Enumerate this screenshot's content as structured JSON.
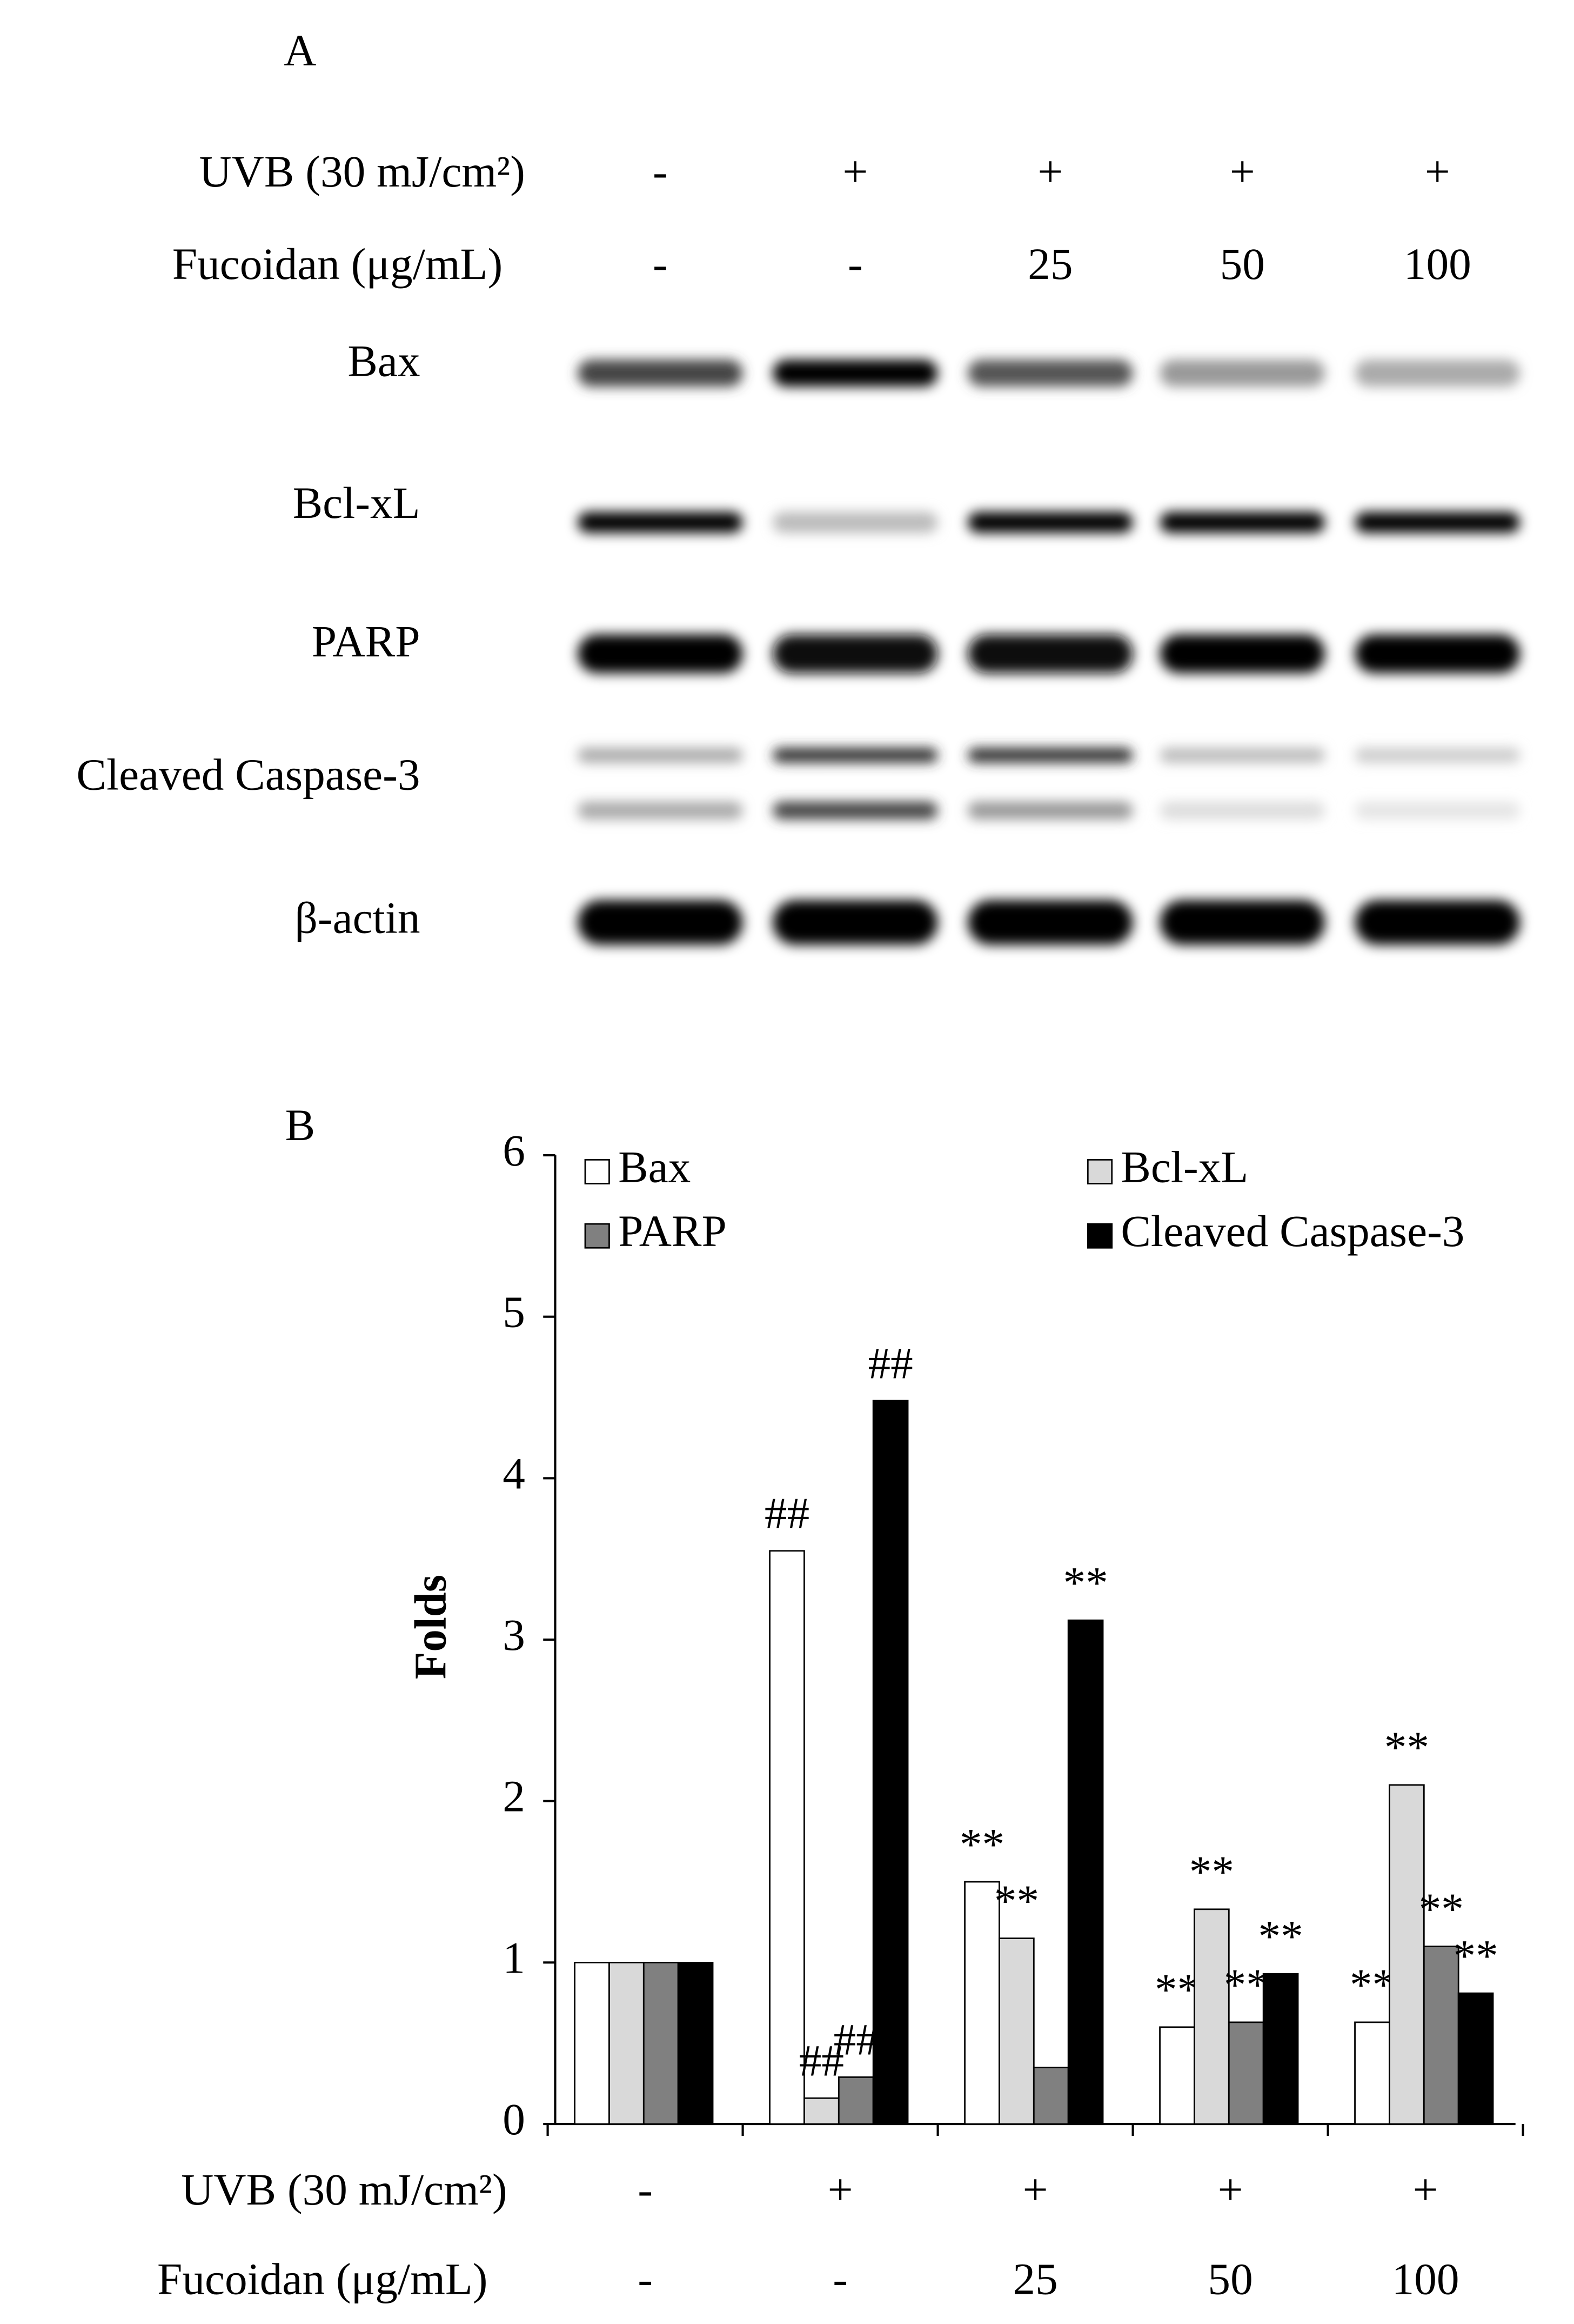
{
  "panel_a": {
    "label": "A",
    "rows": [
      {
        "name": "UVB (30 mJ/cm²)",
        "values": [
          "-",
          "+",
          "+",
          "+",
          "+"
        ]
      },
      {
        "name": "Fucoidan (μg/mL)",
        "values": [
          "-",
          "-",
          "25",
          "50",
          "100"
        ]
      }
    ],
    "bands": [
      "Bax",
      "Bcl-xL",
      "PARP",
      "Cleaved Caspase-3",
      "β-actin"
    ]
  },
  "chart_data": {
    "type": "bar",
    "panel_label": "B",
    "ylabel": "Folds",
    "ylim": [
      0,
      6
    ],
    "yticks": [
      0,
      1,
      2,
      3,
      4,
      5,
      6
    ],
    "legend": "top",
    "x_label_rows": [
      {
        "name": "UVB (30 mJ/cm²)",
        "labels": [
          "-",
          "+",
          "+",
          "+",
          "+"
        ]
      },
      {
        "name": "Fucoidan (μg/mL)",
        "labels": [
          "-",
          "-",
          "25",
          "50",
          "100"
        ]
      }
    ],
    "series": [
      {
        "name": "Bax",
        "color": "#ffffff",
        "values": [
          1,
          3.55,
          1.5,
          0.6,
          0.63
        ],
        "annotations": [
          null,
          "##",
          "**",
          "**",
          "**"
        ]
      },
      {
        "name": "Bcl-xL",
        "color": "#d9d9d9",
        "values": [
          1,
          0.16,
          1.15,
          1.33,
          2.1
        ],
        "annotations": [
          null,
          "##",
          "**",
          "**",
          "**"
        ]
      },
      {
        "name": "PARP",
        "color": "#808080",
        "values": [
          1,
          0.29,
          0.35,
          0.63,
          1.1
        ],
        "annotations": [
          null,
          "##",
          null,
          "**",
          "**"
        ]
      },
      {
        "name": "Cleaved Caspase-3",
        "color": "#000000",
        "values": [
          1,
          4.48,
          3.12,
          0.93,
          0.81
        ],
        "annotations": [
          null,
          "##",
          "**",
          "**",
          "**"
        ]
      }
    ]
  }
}
